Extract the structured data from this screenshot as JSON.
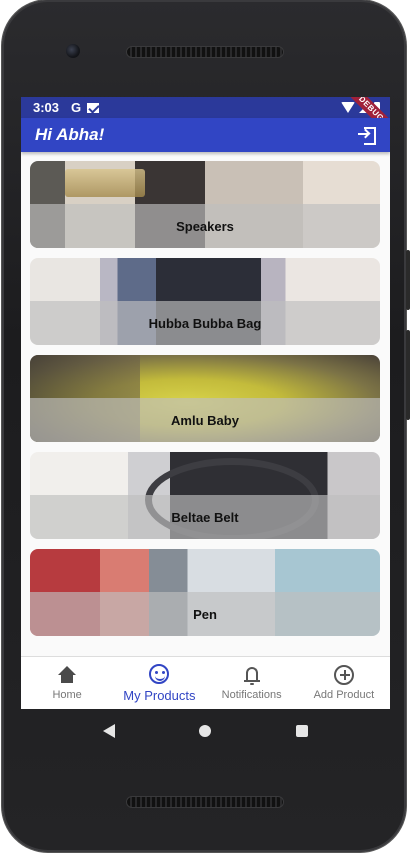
{
  "statusbar": {
    "time": "3:03",
    "google_icon": "G",
    "mail_icon": "mail-icon",
    "debug_label": "DEBUG"
  },
  "appbar": {
    "title": "Hi Abha!",
    "logout_icon": "logout-icon"
  },
  "products": [
    {
      "name": "Speakers"
    },
    {
      "name": "Hubba Bubba Bag"
    },
    {
      "name": "Amlu Baby"
    },
    {
      "name": "Beltae Belt"
    },
    {
      "name": "Pen"
    }
  ],
  "bottom_nav": {
    "active": "My Products",
    "items": [
      {
        "label": "Home",
        "icon": "home-icon"
      },
      {
        "label": "My Products",
        "icon": "smile-icon"
      },
      {
        "label": "Notifications",
        "icon": "bell-icon"
      },
      {
        "label": "Add Product",
        "icon": "add-circle-icon"
      }
    ]
  },
  "system_nav": {
    "back_icon": "back-icon",
    "home_icon": "home-circle-icon",
    "recents_icon": "recents-icon"
  },
  "colors": {
    "status_bar": "#2b399a",
    "app_bar": "#3145c4",
    "active_nav": "#3145c4"
  }
}
